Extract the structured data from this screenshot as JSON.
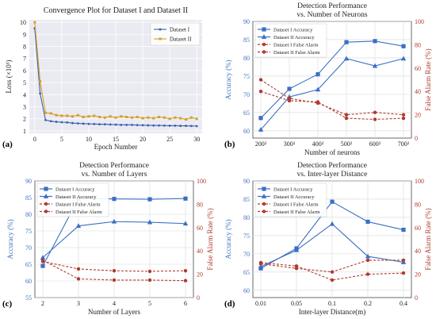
{
  "panel_labels": [
    "(a)",
    "(b)",
    "(c)",
    "(d)"
  ],
  "chart_data": [
    {
      "type": "line",
      "title": "Convergence Plot for Dataset I and Dataset II",
      "xlabel": "Epoch Number",
      "ylabel": "Loss (×10³)",
      "xlim": [
        -1,
        31
      ],
      "ylim": [
        0.8,
        10.2
      ],
      "xticks": [
        0,
        5,
        10,
        15,
        20,
        25,
        30
      ],
      "yticks": [
        1,
        2,
        3,
        4,
        5,
        6,
        7,
        8,
        9,
        10
      ],
      "grid": true,
      "legend": "top-right",
      "series": [
        {
          "name": "Dataset I",
          "color": "#3b5fae",
          "marker": "dot",
          "x": [
            0,
            1,
            2,
            3,
            4,
            5,
            6,
            7,
            8,
            9,
            10,
            11,
            12,
            13,
            14,
            15,
            16,
            17,
            18,
            19,
            20,
            21,
            22,
            23,
            24,
            25,
            26,
            27,
            28,
            29,
            30
          ],
          "y": [
            9.5,
            4.1,
            1.9,
            1.8,
            1.75,
            1.72,
            1.7,
            1.65,
            1.62,
            1.6,
            1.58,
            1.57,
            1.55,
            1.55,
            1.53,
            1.52,
            1.5,
            1.5,
            1.5,
            1.48,
            1.47,
            1.46,
            1.45,
            1.45,
            1.44,
            1.43,
            1.43,
            1.42,
            1.42,
            1.41,
            1.4
          ]
        },
        {
          "name": "Dataset II",
          "color": "#d4a020",
          "marker": "square",
          "x": [
            0,
            1,
            2,
            3,
            4,
            5,
            6,
            7,
            8,
            9,
            10,
            11,
            12,
            13,
            14,
            15,
            16,
            17,
            18,
            19,
            20,
            21,
            22,
            23,
            24,
            25,
            26,
            27,
            28,
            29,
            30
          ],
          "y": [
            10,
            5.1,
            2.5,
            2.45,
            2.3,
            2.25,
            2.25,
            2.2,
            2.3,
            2.15,
            2.2,
            2.25,
            2.15,
            2.1,
            2.2,
            2.1,
            2.2,
            2.15,
            2.1,
            2.15,
            2.05,
            2.1,
            2.05,
            2.15,
            2.1,
            2.0,
            2.1,
            2.05,
            1.95,
            2.1,
            2.0
          ]
        }
      ]
    },
    {
      "type": "line",
      "title": "Detection Performance",
      "subtitle": "vs. Number of Neurons",
      "xlabel": "Number of neurons",
      "ylabel": "Accuracy (%)",
      "y2label": "False Alarm Rate (%)",
      "categories": [
        "200²",
        "300²",
        "400²",
        "500²",
        "600²",
        "700²"
      ],
      "ylim": [
        58,
        90
      ],
      "yticks": [
        60,
        65,
        70,
        75,
        80,
        85,
        90
      ],
      "y2lim": [
        0,
        100
      ],
      "y2ticks": [
        0,
        20,
        40,
        60,
        80,
        100
      ],
      "grid": true,
      "legend": "top-left",
      "series": [
        {
          "name": "Dataset I Accuracy",
          "axis": "left",
          "color": "#3b6fc4",
          "marker": "square",
          "dash": false,
          "values": [
            63.5,
            71.5,
            75.5,
            84.3,
            84.6,
            83.2
          ]
        },
        {
          "name": "Dataset II Accuracy",
          "axis": "left",
          "color": "#3b6fc4",
          "marker": "triangle",
          "dash": false,
          "values": [
            60.3,
            69.3,
            71.3,
            79.8,
            77.8,
            79.8
          ]
        },
        {
          "name": "Dataset I False Alarm",
          "axis": "right",
          "color": "#b03a2e",
          "marker": "dot",
          "dash": true,
          "values": [
            50,
            34,
            30,
            20,
            22,
            20
          ]
        },
        {
          "name": "Dataset II False Alarm",
          "axis": "right",
          "color": "#b03a2e",
          "marker": "dot",
          "dash": true,
          "values": [
            40,
            32,
            31,
            17,
            16,
            17
          ]
        }
      ]
    },
    {
      "type": "line",
      "title": "Detection Performance",
      "subtitle": "vs. Number of Layers",
      "xlabel": "Number of Layers",
      "ylabel": "Accuracy (%)",
      "y2label": "False Alarm Rate (%)",
      "categories": [
        "2",
        "3",
        "4",
        "5",
        "6"
      ],
      "ylim": [
        55,
        90
      ],
      "yticks": [
        55,
        60,
        65,
        70,
        75,
        80,
        85,
        90
      ],
      "y2lim": [
        0,
        100
      ],
      "y2ticks": [
        0,
        20,
        40,
        60,
        80,
        100
      ],
      "grid": true,
      "legend": "top-left",
      "series": [
        {
          "name": "Dataset I Accuracy",
          "axis": "left",
          "color": "#3b6fc4",
          "marker": "square",
          "dash": false,
          "values": [
            64.5,
            84.7,
            84.6,
            84.5,
            84.7
          ]
        },
        {
          "name": "Dataset II Accuracy",
          "axis": "left",
          "color": "#3b6fc4",
          "marker": "triangle",
          "dash": false,
          "values": [
            67.0,
            76.5,
            77.8,
            77.6,
            77.2
          ]
        },
        {
          "name": "Dataset I False Alarm",
          "axis": "right",
          "color": "#b03a2e",
          "marker": "dot",
          "dash": true,
          "values": [
            31,
            24.5,
            23,
            22.5,
            23
          ]
        },
        {
          "name": "Dataset II False Alarm",
          "axis": "right",
          "color": "#b03a2e",
          "marker": "dot",
          "dash": true,
          "values": [
            32,
            16,
            15,
            15,
            14.5
          ]
        }
      ]
    },
    {
      "type": "line",
      "title": "Detection Performance",
      "subtitle": "vs. Inter-layer Distance",
      "xlabel": "Inter-layer Distance(m)",
      "ylabel": "Accuracy (%)",
      "y2label": "False Alarm Rate (%)",
      "categories": [
        "0.01",
        "0.05",
        "0.1",
        "0.2",
        "0.4"
      ],
      "ylim": [
        58,
        90
      ],
      "yticks": [
        60,
        65,
        70,
        75,
        80,
        85,
        90
      ],
      "y2lim": [
        0,
        100
      ],
      "y2ticks": [
        0,
        20,
        40,
        60,
        80,
        100
      ],
      "grid": true,
      "legend": "top-left",
      "series": [
        {
          "name": "Dataset I Accuracy",
          "axis": "left",
          "color": "#3b6fc4",
          "marker": "square",
          "dash": false,
          "values": [
            66.0,
            71.5,
            84.3,
            78.8,
            76.6
          ]
        },
        {
          "name": "Dataset II Accuracy",
          "axis": "left",
          "color": "#3b6fc4",
          "marker": "triangle",
          "dash": false,
          "values": [
            66.5,
            71.0,
            78.2,
            69.3,
            67.7
          ]
        },
        {
          "name": "Dataset I False Alarm",
          "axis": "right",
          "color": "#b03a2e",
          "marker": "dot",
          "dash": true,
          "values": [
            29,
            25,
            22,
            32,
            32
          ]
        },
        {
          "name": "Dataset II False Alarm",
          "axis": "right",
          "color": "#b03a2e",
          "marker": "dot",
          "dash": true,
          "values": [
            30,
            27,
            15,
            20,
            21
          ]
        }
      ]
    }
  ]
}
